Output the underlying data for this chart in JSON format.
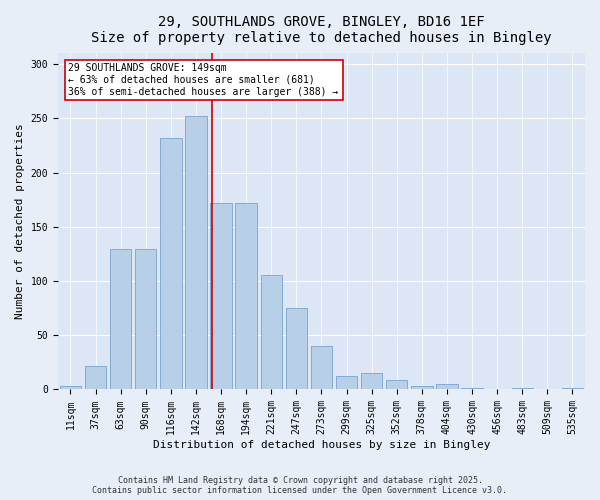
{
  "title_line1": "29, SOUTHLANDS GROVE, BINGLEY, BD16 1EF",
  "title_line2": "Size of property relative to detached houses in Bingley",
  "xlabel": "Distribution of detached houses by size in Bingley",
  "ylabel": "Number of detached properties",
  "bar_color": "#b8cfe8",
  "bar_edge_color": "#6699cc",
  "background_color": "#dce6f5",
  "fig_background_color": "#e8eef8",
  "grid_color": "#ffffff",
  "annotation_box_color": "#cc0000",
  "vline_color": "#cc0000",
  "annotation_text": "29 SOUTHLANDS GROVE: 149sqm\n← 63% of detached houses are smaller (681)\n36% of semi-detached houses are larger (388) →",
  "annotation_fontsize": 7,
  "categories": [
    "11sqm",
    "37sqm",
    "63sqm",
    "90sqm",
    "116sqm",
    "142sqm",
    "168sqm",
    "194sqm",
    "221sqm",
    "247sqm",
    "273sqm",
    "299sqm",
    "325sqm",
    "352sqm",
    "378sqm",
    "404sqm",
    "430sqm",
    "456sqm",
    "483sqm",
    "509sqm",
    "535sqm"
  ],
  "bar_heights": [
    3,
    22,
    130,
    130,
    232,
    252,
    172,
    172,
    106,
    75,
    40,
    12,
    15,
    9,
    3,
    5,
    1,
    0,
    1,
    0,
    1
  ],
  "vline_x": 5.62,
  "ylim": [
    0,
    310
  ],
  "yticks": [
    0,
    50,
    100,
    150,
    200,
    250,
    300
  ],
  "footer_text": "Contains HM Land Registry data © Crown copyright and database right 2025.\nContains public sector information licensed under the Open Government Licence v3.0.",
  "title_fontsize": 10,
  "label_fontsize": 8,
  "tick_fontsize": 7,
  "footer_fontsize": 6
}
